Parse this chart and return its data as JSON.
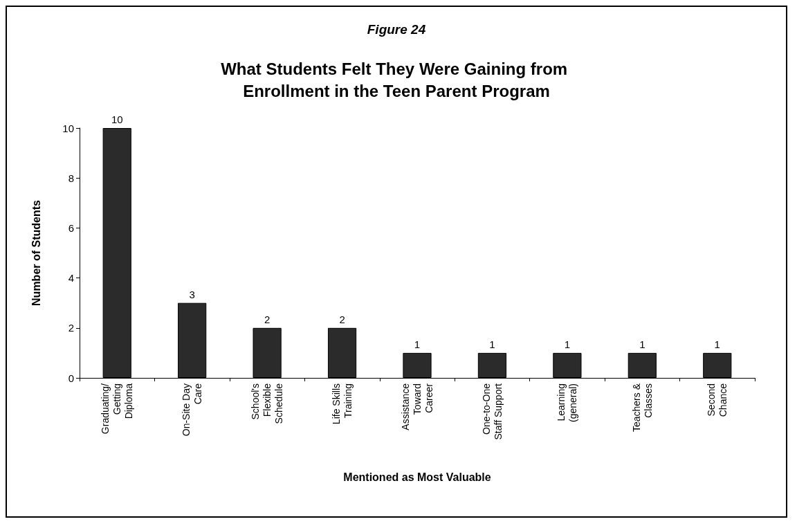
{
  "chart_data": {
    "type": "bar",
    "title": "Figure 24",
    "subtitle": "What Students Felt They Were Gaining from Enrollment in the Teen Parent Program",
    "xlabel": "Mentioned as Most Valuable",
    "ylabel": "Number of Students",
    "categories": [
      "Graduating/\nGetting\nDiploma",
      "On-Site Day\nCare",
      "School's\nFlexible\nSchedule",
      "Life Skills\nTraining",
      "Assistance\nToward\nCareer",
      "One-to-One\nStaff Support",
      "Learning\n(general)",
      "Teachers &\nClasses",
      "Second\nChance"
    ],
    "values": [
      10,
      3,
      2,
      2,
      1,
      1,
      1,
      1,
      1
    ],
    "color": "#2b2b2b",
    "ylim": [
      0,
      10
    ],
    "yticks": [
      0,
      2,
      4,
      6,
      8,
      10
    ],
    "data_labels": true,
    "grid": false
  }
}
